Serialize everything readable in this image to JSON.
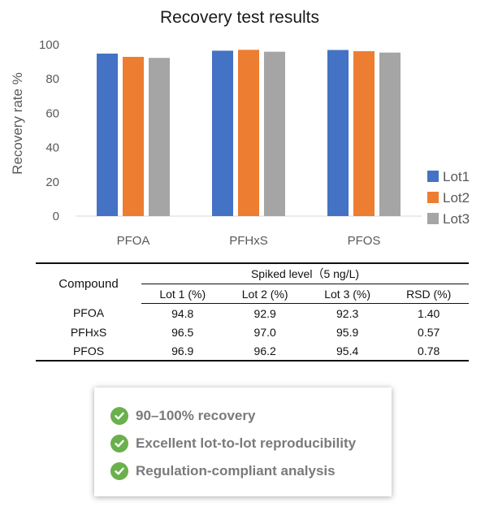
{
  "chart_data": {
    "type": "bar",
    "title": "Recovery test results",
    "ylabel": "Recovery rate %",
    "xlabel": "",
    "categories": [
      "PFOA",
      "PFHxS",
      "PFOS"
    ],
    "series": [
      {
        "name": "Lot1",
        "values": [
          94.8,
          96.5,
          96.9
        ]
      },
      {
        "name": "Lot2",
        "values": [
          92.9,
          97.0,
          96.2
        ]
      },
      {
        "name": "Lot3",
        "values": [
          92.3,
          95.9,
          95.4
        ]
      }
    ],
    "ylim": [
      0,
      100
    ],
    "yticks": [
      "0",
      "20",
      "40",
      "60",
      "80",
      "100"
    ],
    "grid": false,
    "legend": "right",
    "colors": [
      "#4472c4",
      "#ed7d31",
      "#a5a5a5"
    ]
  },
  "table": {
    "compound_header": "Compound",
    "spiked_header": "Spiked level（5 ng/L)",
    "columns": [
      "Lot 1 (%)",
      "Lot 2 (%)",
      "Lot 3 (%)",
      "RSD (%)"
    ],
    "rows": [
      {
        "compound": "PFOA",
        "values": [
          "94.8",
          "92.9",
          "92.3",
          "1.40"
        ]
      },
      {
        "compound": "PFHxS",
        "values": [
          "96.5",
          "97.0",
          "95.9",
          "0.57"
        ]
      },
      {
        "compound": "PFOS",
        "values": [
          "96.9",
          "96.2",
          "95.4",
          "0.78"
        ]
      }
    ]
  },
  "highlights": {
    "icon": "check-circle-icon",
    "icon_color": "#6ab04c",
    "items": [
      "90–100% recovery",
      "Excellent lot-to-lot reproducibility",
      "Regulation-compliant analysis"
    ]
  }
}
